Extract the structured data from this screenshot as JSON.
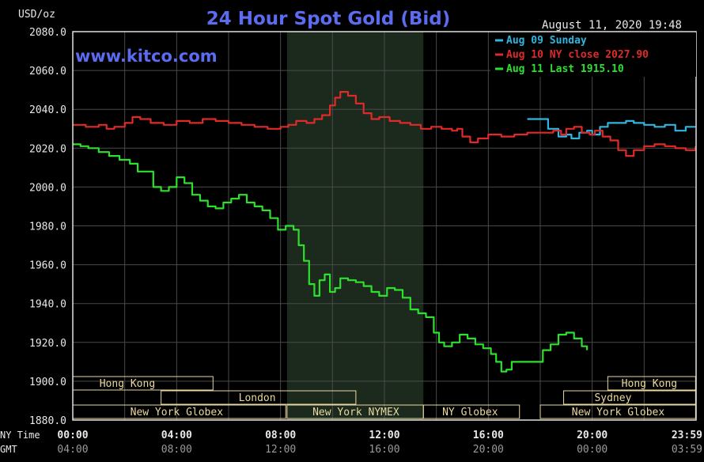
{
  "chart_data": {
    "type": "line",
    "title": "24 Hour Spot Gold (Bid)",
    "site": "www.kitco.com",
    "timestamp": "August 11, 2020 19:48",
    "ylabel": "USD/oz",
    "ylim": [
      1880,
      2080
    ],
    "yticks": [
      "2080.0",
      "2060.0",
      "2040.0",
      "2020.0",
      "2000.0",
      "1980.0",
      "1960.0",
      "1940.0",
      "1920.0",
      "1900.0",
      "1880.0"
    ],
    "xlim": [
      0,
      24
    ],
    "ny_label": "NY Time",
    "gmt_label": "GMT",
    "xticks_ny": [
      "00:00",
      "04:00",
      "08:00",
      "12:00",
      "16:00",
      "20:00",
      "23:59"
    ],
    "xticks_gmt": [
      "04:00",
      "08:00",
      "12:00",
      "16:00",
      "20:00",
      "00:00",
      "03:59"
    ],
    "xtick_positions": [
      0,
      4,
      8,
      12,
      16,
      20,
      23.983
    ],
    "grid": true,
    "legend_position": "top-right",
    "shaded_period": [
      8.25,
      13.5
    ],
    "colors": {
      "background": "#000000",
      "shade": "#1c2a1e",
      "grid": "#4a4a4a",
      "frame": "#e0e0e0",
      "title": "#5b6cf0",
      "site": "#5b6cf0",
      "text": "#e8e8e8",
      "session_box": "#e8d8a0"
    },
    "series": [
      {
        "name": "Aug 09 Sunday",
        "color": "#2fb6e0",
        "x": [
          17.5,
          18.2,
          18.3,
          18.7,
          19.0,
          19.2,
          19.5,
          19.8,
          20.0,
          20.3,
          20.6,
          21.0,
          21.3,
          21.6,
          22.0,
          22.4,
          22.8,
          23.2,
          23.6,
          23.98
        ],
        "y": [
          2035,
          2035,
          2030,
          2026,
          2027,
          2025,
          2028,
          2029,
          2027,
          2031,
          2033,
          2033,
          2034,
          2033,
          2032,
          2031,
          2032,
          2029,
          2031,
          2031
        ]
      },
      {
        "name": "Aug 10 NY close 2027.90",
        "color": "#e02a2a",
        "x": [
          0.0,
          0.5,
          1.0,
          1.3,
          1.6,
          2.0,
          2.3,
          2.6,
          3.0,
          3.5,
          4.0,
          4.5,
          5.0,
          5.5,
          6.0,
          6.5,
          7.0,
          7.5,
          8.0,
          8.3,
          8.6,
          9.0,
          9.3,
          9.6,
          9.9,
          10.1,
          10.3,
          10.6,
          10.9,
          11.2,
          11.5,
          11.8,
          12.2,
          12.6,
          13.0,
          13.4,
          13.8,
          14.2,
          14.6,
          14.8,
          15.0,
          15.3,
          15.6,
          16.0,
          16.5,
          17.0,
          17.5,
          18.0,
          18.5,
          18.8,
          19.0,
          19.3,
          19.6,
          19.9,
          20.1,
          20.4,
          20.7,
          21.0,
          21.3,
          21.6,
          22.0,
          22.4,
          22.8,
          23.2,
          23.6,
          23.98
        ],
        "y": [
          2032,
          2031,
          2032,
          2030,
          2031,
          2033,
          2036,
          2035,
          2033,
          2032,
          2034,
          2033,
          2035,
          2034,
          2033,
          2032,
          2031,
          2030,
          2031,
          2032,
          2034,
          2033,
          2035,
          2037,
          2042,
          2046,
          2049,
          2047,
          2043,
          2038,
          2035,
          2036,
          2034,
          2033,
          2032,
          2030,
          2031,
          2030,
          2029,
          2030,
          2026,
          2023,
          2025,
          2027,
          2026,
          2027,
          2028,
          2028,
          2029,
          2027,
          2030,
          2031,
          2028,
          2027,
          2029,
          2026,
          2024,
          2019,
          2016,
          2019,
          2021,
          2022,
          2021,
          2020,
          2019,
          2021
        ]
      },
      {
        "name": "Aug 11 Last 1915.10",
        "color": "#2ee02e",
        "x": [
          0.0,
          0.3,
          0.6,
          1.0,
          1.4,
          1.8,
          2.2,
          2.5,
          2.8,
          3.1,
          3.4,
          3.7,
          4.0,
          4.3,
          4.6,
          4.9,
          5.2,
          5.5,
          5.8,
          6.1,
          6.4,
          6.7,
          7.0,
          7.3,
          7.6,
          7.9,
          8.2,
          8.5,
          8.7,
          8.9,
          9.1,
          9.3,
          9.5,
          9.7,
          9.9,
          10.1,
          10.3,
          10.6,
          10.9,
          11.2,
          11.5,
          11.8,
          12.1,
          12.4,
          12.7,
          13.0,
          13.3,
          13.6,
          13.9,
          14.1,
          14.3,
          14.6,
          14.9,
          15.2,
          15.5,
          15.8,
          16.1,
          16.3,
          16.5,
          16.7,
          16.9,
          17.2,
          17.5,
          17.8,
          18.1,
          18.4,
          18.7,
          19.0,
          19.3,
          19.6,
          19.8
        ],
        "y": [
          2022,
          2021,
          2020,
          2018,
          2016,
          2014,
          2012,
          2008,
          2008,
          2000,
          1998,
          2000,
          2005,
          2002,
          1996,
          1993,
          1990,
          1989,
          1992,
          1994,
          1996,
          1992,
          1990,
          1988,
          1984,
          1978,
          1980,
          1978,
          1970,
          1962,
          1950,
          1944,
          1952,
          1955,
          1946,
          1948,
          1953,
          1952,
          1951,
          1949,
          1946,
          1944,
          1948,
          1947,
          1943,
          1937,
          1935,
          1933,
          1925,
          1920,
          1918,
          1920,
          1924,
          1922,
          1919,
          1917,
          1914,
          1910,
          1905,
          1906,
          1910,
          1910,
          1910,
          1910,
          1916,
          1919,
          1924,
          1925,
          1922,
          1918,
          1916
        ]
      }
    ],
    "sessions": [
      {
        "label": "Hong Kong",
        "row": 0,
        "start": 0.0,
        "end": 5.4,
        "label_at": 2.1
      },
      {
        "label": "Hong Kong",
        "row": 0,
        "start": 20.6,
        "end": 23.98,
        "label_at": 22.2
      },
      {
        "label": "London",
        "row": 1,
        "start": 3.4,
        "end": 10.9,
        "label_at": 7.1
      },
      {
        "label": "Sydney",
        "row": 1,
        "start": 18.9,
        "end": 23.98,
        "label_at": 20.8
      },
      {
        "label": "New York Globex",
        "row": 2,
        "start": 0.0,
        "end": 8.2,
        "label_at": 4.0
      },
      {
        "label": "New York NYMEX",
        "row": 2,
        "start": 8.25,
        "end": 13.5,
        "label_at": 10.9
      },
      {
        "label": "NY Globex",
        "row": 2,
        "start": 13.5,
        "end": 17.2,
        "label_at": 15.3
      },
      {
        "label": "New York Globex",
        "row": 2,
        "start": 18.0,
        "end": 23.98,
        "label_at": 21.0
      }
    ]
  }
}
